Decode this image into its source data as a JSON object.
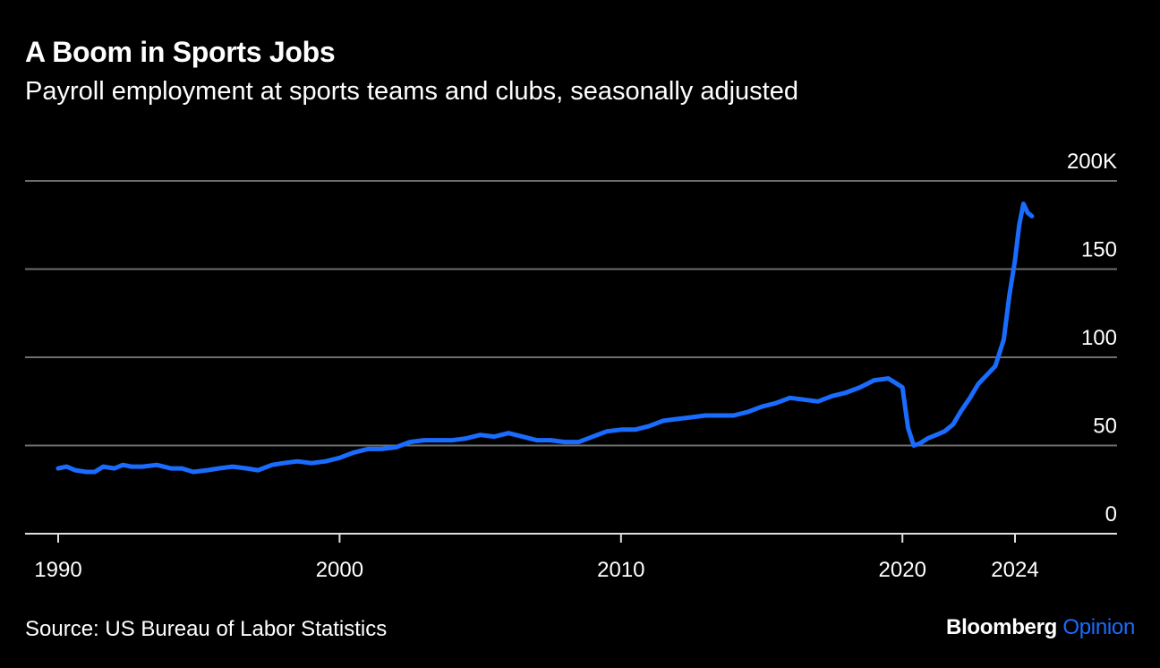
{
  "colors": {
    "background": "#000000",
    "text": "#ffffff",
    "series": "#1a6cff",
    "gridline": "#6e6e6e",
    "accent": "#1a6cff"
  },
  "footer": {
    "source": "Source: US Bureau of Labor Statistics",
    "logo_brand": "Bloomberg",
    "logo_product": "Opinion"
  },
  "chart_data": {
    "type": "line",
    "title": "A Boom in Sports Jobs",
    "subtitle": "Payroll employment at sports teams and clubs, seasonally adjusted",
    "xlabel": "",
    "ylabel": "",
    "xlim": [
      1989,
      2027.5
    ],
    "ylim": [
      -2,
      200
    ],
    "x_ticks": [
      1990,
      2000,
      2010,
      2020,
      2024
    ],
    "y_ticks": [
      0,
      50,
      100,
      150,
      200
    ],
    "y_tick_labels": [
      "0",
      "50",
      "100",
      "150",
      "200K"
    ],
    "grid": "horizontal",
    "legend": "none",
    "series": [
      {
        "values": [
          [
            1990.0,
            37
          ],
          [
            1990.3,
            38
          ],
          [
            1990.6,
            36
          ],
          [
            1991.0,
            35
          ],
          [
            1991.3,
            35
          ],
          [
            1991.6,
            38
          ],
          [
            1992.0,
            37
          ],
          [
            1992.3,
            39
          ],
          [
            1992.6,
            38
          ],
          [
            1993.0,
            38
          ],
          [
            1993.5,
            39
          ],
          [
            1994.0,
            37
          ],
          [
            1994.4,
            37
          ],
          [
            1994.8,
            35
          ],
          [
            1995.3,
            36
          ],
          [
            1995.7,
            37
          ],
          [
            1996.2,
            38
          ],
          [
            1996.7,
            37
          ],
          [
            1997.1,
            36
          ],
          [
            1997.6,
            39
          ],
          [
            1998.0,
            40
          ],
          [
            1998.5,
            41
          ],
          [
            1999.0,
            40
          ],
          [
            1999.5,
            41
          ],
          [
            2000.0,
            43
          ],
          [
            2000.5,
            46
          ],
          [
            2001.0,
            48
          ],
          [
            2001.5,
            48
          ],
          [
            2002.0,
            49
          ],
          [
            2002.5,
            52
          ],
          [
            2003.0,
            53
          ],
          [
            2003.5,
            53
          ],
          [
            2004.0,
            53
          ],
          [
            2004.5,
            54
          ],
          [
            2005.0,
            56
          ],
          [
            2005.5,
            55
          ],
          [
            2006.0,
            57
          ],
          [
            2006.5,
            55
          ],
          [
            2007.0,
            53
          ],
          [
            2007.5,
            53
          ],
          [
            2008.0,
            52
          ],
          [
            2008.5,
            52
          ],
          [
            2009.0,
            55
          ],
          [
            2009.5,
            58
          ],
          [
            2010.0,
            59
          ],
          [
            2010.5,
            59
          ],
          [
            2011.0,
            61
          ],
          [
            2011.5,
            64
          ],
          [
            2012.0,
            65
          ],
          [
            2012.5,
            66
          ],
          [
            2013.0,
            67
          ],
          [
            2013.5,
            67
          ],
          [
            2014.0,
            67
          ],
          [
            2014.5,
            69
          ],
          [
            2015.0,
            72
          ],
          [
            2015.5,
            74
          ],
          [
            2016.0,
            77
          ],
          [
            2016.5,
            76
          ],
          [
            2017.0,
            75
          ],
          [
            2017.5,
            78
          ],
          [
            2018.0,
            80
          ],
          [
            2018.5,
            83
          ],
          [
            2019.0,
            87
          ],
          [
            2019.5,
            88
          ],
          [
            2020.0,
            83
          ],
          [
            2020.2,
            60
          ],
          [
            2020.4,
            50
          ],
          [
            2020.6,
            51
          ],
          [
            2020.9,
            54
          ],
          [
            2021.2,
            56
          ],
          [
            2021.5,
            58
          ],
          [
            2021.8,
            62
          ],
          [
            2022.1,
            70
          ],
          [
            2022.4,
            77
          ],
          [
            2022.7,
            85
          ],
          [
            2023.0,
            90
          ],
          [
            2023.3,
            95
          ],
          [
            2023.6,
            110
          ],
          [
            2023.8,
            135
          ],
          [
            2024.0,
            155
          ],
          [
            2024.15,
            175
          ],
          [
            2024.3,
            187
          ],
          [
            2024.45,
            182
          ],
          [
            2024.6,
            180
          ]
        ]
      }
    ]
  }
}
